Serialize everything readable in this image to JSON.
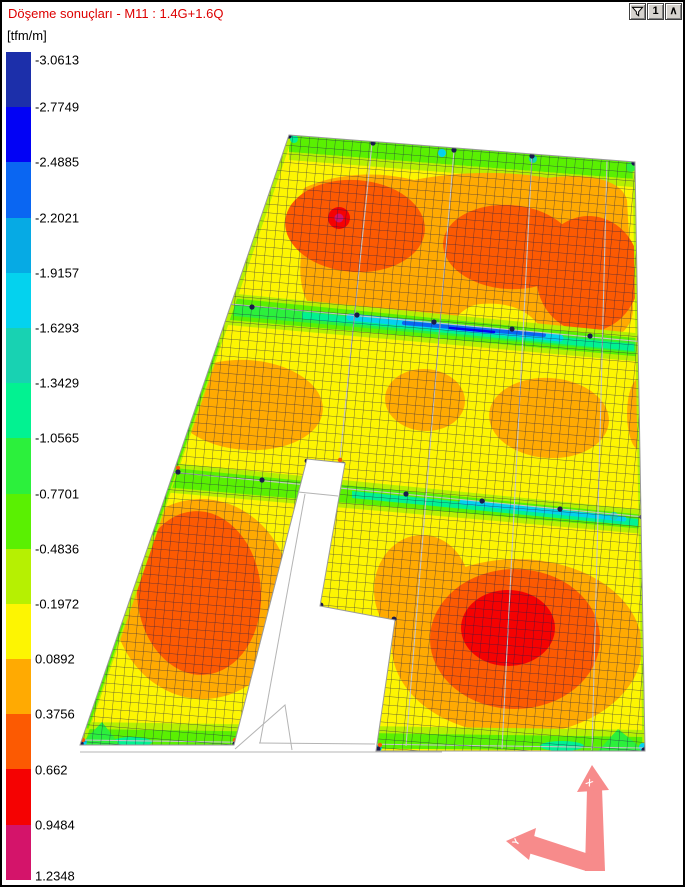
{
  "window": {
    "title": "Döşeme sonuçları - M11 : 1.4G+1.6Q",
    "unit_label": "[tfm/m]"
  },
  "toolbar": {
    "filter_button_icon": "funnel-icon",
    "view_number_button_label": "1",
    "collapse_button_label": "∧"
  },
  "legend": {
    "unit": "tfm/m",
    "boundary_values": [
      "-3.0613",
      "-2.7749",
      "-2.4885",
      "-2.2021",
      "-1.9157",
      "-1.6293",
      "-1.3429",
      "-1.0565",
      "-0.7701",
      "-0.4836",
      "-0.1972",
      "0.0892",
      "0.3756",
      "0.662",
      "0.9484",
      "1.2348"
    ],
    "band_colors": [
      "#1c2faa",
      "#0202f5",
      "#0a66f2",
      "#06aae4",
      "#04d2ee",
      "#18d2b2",
      "#02f291",
      "#2cf03c",
      "#5af002",
      "#b6f002",
      "#fdf502",
      "#ffaa02",
      "#fc5a02",
      "#f50202",
      "#d4146a"
    ]
  },
  "axes_indicator": {
    "x_label": "X",
    "y_label": "Y",
    "arrow_color": "#f78b8b"
  },
  "colors": {
    "title_text": "#dd0000",
    "window_border": "#000000",
    "button_face": "#d6d3ce",
    "mesh_line": "#1b1b4c",
    "base_fill": "#fdf502",
    "grid_line": "#c6c6c6"
  }
}
